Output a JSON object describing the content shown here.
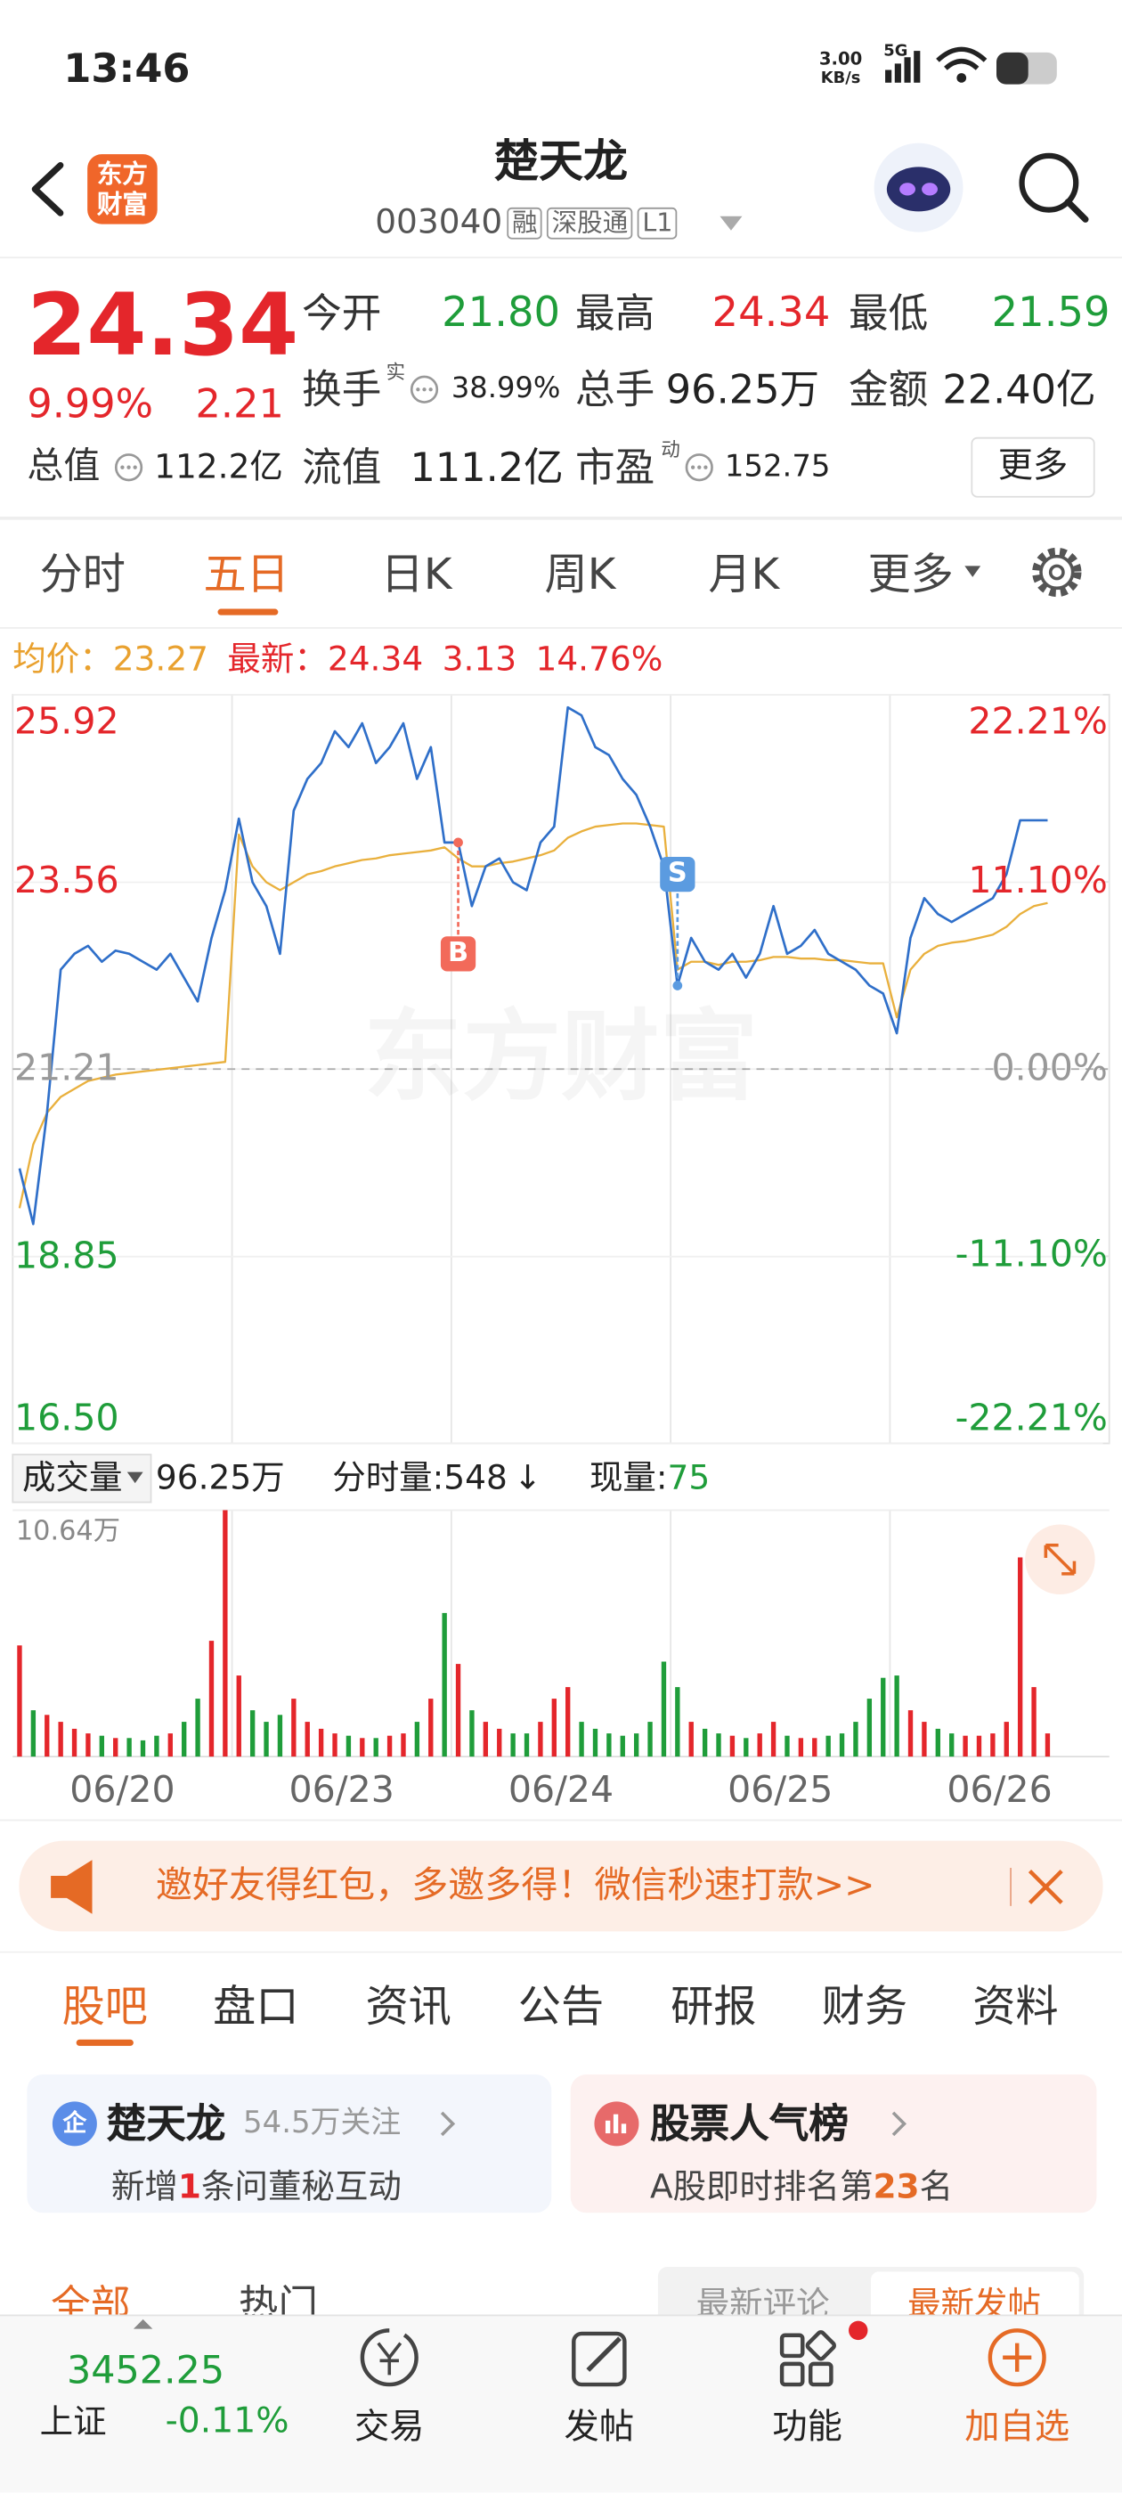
{
  "status_bar": {
    "time": "13:46",
    "net_speed": "3.00",
    "net_unit": "KB/s",
    "network": "5G"
  },
  "header": {
    "logo": [
      "东方",
      "财富"
    ],
    "title": "楚天龙",
    "code": "003040",
    "tags": [
      "融",
      "深股通",
      "L1"
    ]
  },
  "quote": {
    "price": "24.34",
    "change_pct": "9.99%",
    "change": "2.21",
    "fields": [
      {
        "label": "今开",
        "value": "21.80"
      },
      {
        "label": "最高",
        "value": "24.34"
      },
      {
        "label": "最低",
        "value": "21.59"
      },
      {
        "label": "换手",
        "mark": "实",
        "value": "38.99%"
      },
      {
        "label": "总手",
        "value": "96.25万"
      },
      {
        "label": "金额",
        "value": "22.40亿"
      },
      {
        "label": "总值",
        "value": "112.2亿"
      },
      {
        "label": "流值",
        "value": "111.2亿"
      },
      {
        "label": "市盈",
        "mark": "动",
        "value": "152.75"
      }
    ],
    "more": "更多"
  },
  "chart_tabs": {
    "items": [
      "分时",
      "五日",
      "日K",
      "周K",
      "月K",
      "更多"
    ],
    "active": 1
  },
  "summary": {
    "avg_label": "均价：",
    "avg": "23.27",
    "latest_label": "最新：",
    "latest": "24.34",
    "change": "3.13",
    "change_pct": "14.76%"
  },
  "chart_data": [
    {
      "type": "line",
      "categories": [
        "06/20",
        "06/23",
        "06/24",
        "06/25",
        "06/26"
      ],
      "series": [
        {
          "color": "#2f6fc9",
          "values": [
            [
              19.96,
              19.26,
              20.66,
              22.46,
              22.66,
              22.76,
              22.56,
              22.7,
              22.66,
              22.56,
              22.46,
              22.66,
              22.36,
              22.06,
              22.86,
              23.46
            ],
            [
              24.36,
              23.56,
              23.26,
              22.66,
              24.46,
              24.86,
              25.06,
              25.46,
              25.26,
              25.56,
              25.06,
              25.26,
              25.56,
              24.86,
              25.26,
              24.06
            ],
            [
              24.06,
              23.26,
              23.76,
              23.86,
              23.56,
              23.46,
              24.06,
              24.26,
              25.76,
              25.66,
              25.26,
              25.16,
              24.86,
              24.66,
              24.26,
              23.76
            ],
            [
              22.26,
              22.86,
              22.56,
              22.46,
              22.66,
              22.36,
              22.66,
              23.26,
              22.66,
              22.76,
              22.96,
              22.66,
              22.56,
              22.46,
              22.26,
              22.16
            ],
            [
              21.66,
              22.86,
              23.36,
              23.16,
              23.06,
              23.16,
              23.26,
              23.36,
              23.66,
              24.34,
              24.34,
              24.34,
              null,
              null,
              null,
              null
            ]
          ]
        },
        {
          "color": "#e9b03d",
          "values": [
            [
              19.46,
              20.26,
              20.66,
              20.86,
              20.96,
              21.06,
              21.1,
              21.14,
              21.16,
              21.18,
              21.2,
              21.22,
              21.24,
              21.26,
              21.28,
              21.3
            ],
            [
              24.16,
              23.76,
              23.56,
              23.46,
              23.56,
              23.66,
              23.7,
              23.76,
              23.8,
              23.84,
              23.86,
              23.9,
              23.92,
              23.94,
              23.96,
              24.0
            ],
            [
              23.86,
              23.76,
              23.76,
              23.8,
              23.82,
              23.86,
              23.9,
              23.96,
              24.12,
              24.2,
              24.26,
              24.28,
              24.3,
              24.3,
              24.28,
              24.26
            ],
            [
              22.46,
              22.56,
              22.56,
              22.52,
              22.56,
              22.56,
              22.58,
              22.62,
              22.62,
              22.6,
              22.6,
              22.58,
              22.58,
              22.56,
              22.54,
              22.54
            ],
            [
              21.86,
              22.46,
              22.66,
              22.76,
              22.8,
              22.82,
              22.86,
              22.9,
              23.0,
              23.16,
              23.26,
              23.3,
              null,
              null,
              null,
              null
            ]
          ]
        }
      ],
      "ylim": [
        16.5,
        25.92
      ],
      "yticks": [
        {
          "value": 16.5,
          "label": "16.50"
        },
        18.85,
        21.21,
        23.56,
        25.92
      ],
      "y2lim": [
        -22.21,
        22.21
      ],
      "y2ticks": [
        {
          "value": -22.21,
          "label": "-22.21%"
        },
        {
          "value": -11.1,
          "label": "-11.10%"
        },
        {
          "value": 0,
          "label": "0.00%"
        },
        {
          "value": 11.1,
          "label": "11.10%"
        },
        {
          "value": 22.21,
          "label": "22.21%"
        }
      ],
      "reference_line": 21.21,
      "grid": true
    },
    {
      "type": "bar",
      "values": [
        [
          4.8,
          2.0,
          1.8,
          1.5,
          1.2,
          1.0,
          0.9,
          0.8,
          0.8,
          0.7,
          0.9,
          1.0,
          1.5,
          2.5,
          5.0,
          10.64
        ],
        [
          3.5,
          2.0,
          1.5,
          1.8,
          2.5,
          1.5,
          1.2,
          1.0,
          0.9,
          0.8,
          0.8,
          0.9,
          1.0,
          1.5,
          2.5,
          6.2
        ],
        [
          4.0,
          2.0,
          1.5,
          1.2,
          1.0,
          1.0,
          1.5,
          2.5,
          3.0,
          1.5,
          1.2,
          1.0,
          0.9,
          1.0,
          1.5,
          4.1
        ],
        [
          3.0,
          1.5,
          1.2,
          1.0,
          0.9,
          0.8,
          1.0,
          1.5,
          0.9,
          0.8,
          0.8,
          0.9,
          1.0,
          1.5,
          2.5,
          3.4
        ],
        [
          3.5,
          2.0,
          1.5,
          1.2,
          1.0,
          0.9,
          0.9,
          1.0,
          1.5,
          8.6,
          3.0,
          1.0,
          null,
          null,
          null,
          null
        ]
      ],
      "ylim": [
        0,
        10.64
      ],
      "yticks": [
        {
          "value": 10.64,
          "label": "10.64万"
        }
      ],
      "colors": {
        "up": "#e4262b",
        "down": "#1f9d3a"
      }
    }
  ],
  "watermark": "东方财富",
  "trade_markers": [
    "B",
    "S"
  ],
  "volume_header": {
    "label": "成交量",
    "total": "96.25万",
    "period_label": "分时量:",
    "period": "548",
    "period_arrow": "↓",
    "current_label": "现量:",
    "current": "75"
  },
  "promo": {
    "text": "邀好友得红包，多邀多得！微信秒速打款>>"
  },
  "stock_tabs": {
    "items": [
      "股吧",
      "盘口",
      "资讯",
      "公告",
      "研报",
      "财务",
      "资料"
    ],
    "active": 0
  },
  "cards": [
    {
      "icon": "企",
      "title": "楚天龙",
      "meta": "54.5万关注",
      "line": [
        "新增",
        "1",
        "条问董秘互动"
      ]
    },
    {
      "title": "股票人气榜",
      "line": [
        "A股即时排名第",
        "23",
        "名"
      ]
    }
  ],
  "feed_tabs": {
    "left": [
      "全部",
      "热门"
    ],
    "right": [
      "最新评论",
      "最新发帖"
    ]
  },
  "bottom_nav": {
    "index_value": "3452.25",
    "index_name": "上证",
    "index_change": "-0.11%",
    "items": [
      "交易",
      "发帖",
      "功能",
      "加自选"
    ]
  }
}
